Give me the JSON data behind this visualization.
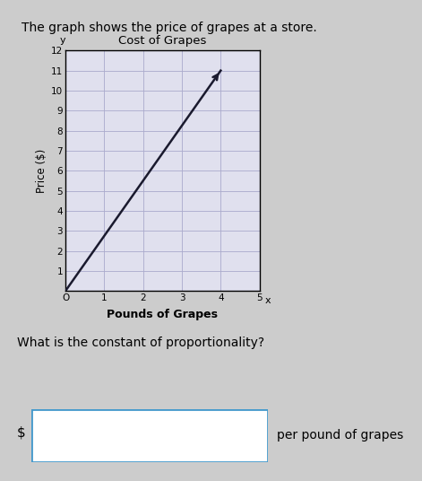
{
  "title": "The graph shows the price of grapes at a store.",
  "chart_title": "Cost of Grapes",
  "xlabel": "Pounds of Grapes",
  "ylabel": "Price ($)",
  "xlim": [
    0,
    5
  ],
  "ylim": [
    0,
    12
  ],
  "xticks": [
    0,
    1,
    2,
    3,
    4,
    5
  ],
  "yticks": [
    1,
    2,
    3,
    4,
    5,
    6,
    7,
    8,
    9,
    10,
    11,
    12
  ],
  "line_x": [
    0,
    4
  ],
  "line_y": [
    0,
    11
  ],
  "line_color": "#1a1a2e",
  "grid_color": "#aaaacc",
  "background_color": "#e0e0ee",
  "question_text": "What is the constant of proportionality?",
  "answer_prefix": "$",
  "answer_suffix": "per pound of grapes",
  "box_color": "#4499cc",
  "fig_bg": "#cccccc",
  "page_bg": "#d4d4d4"
}
